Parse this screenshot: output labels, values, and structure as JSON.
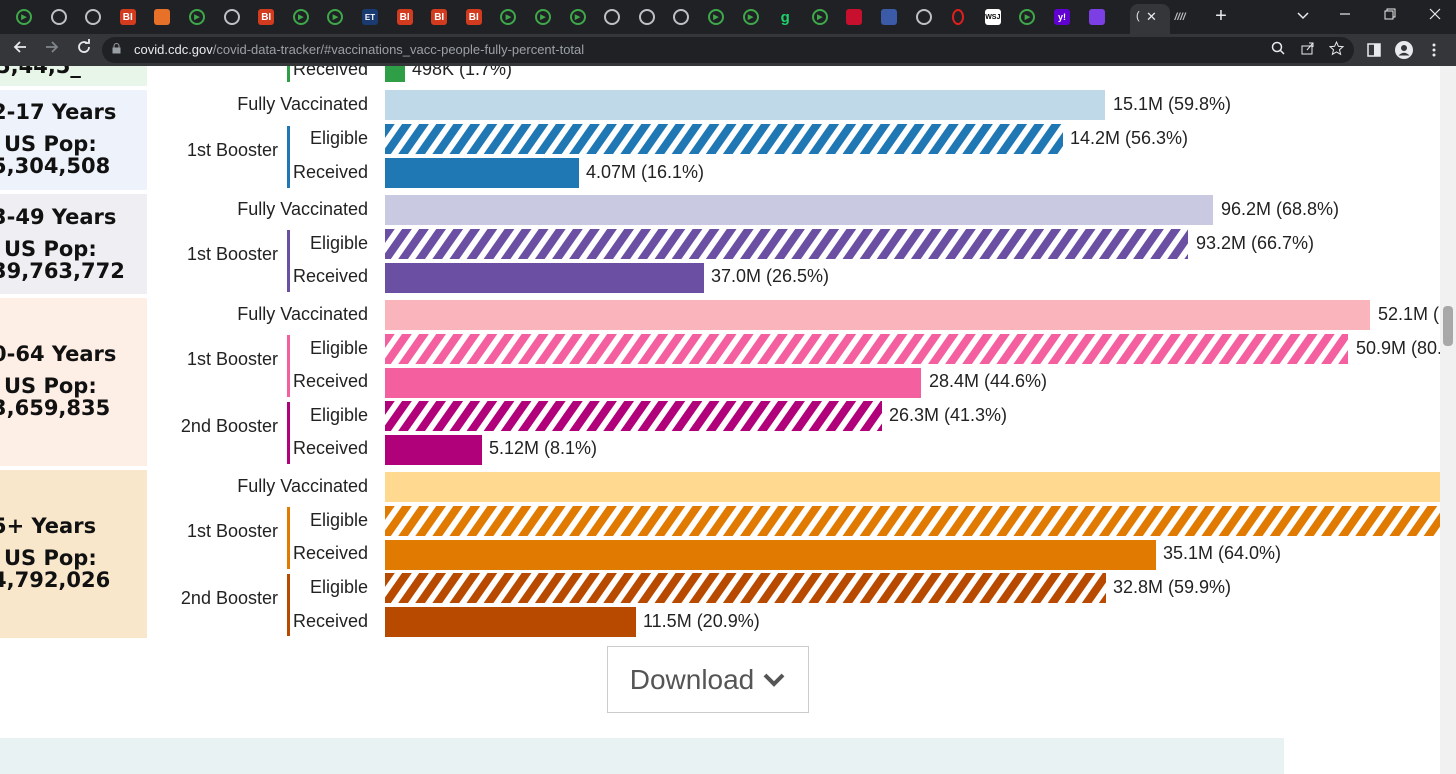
{
  "browser": {
    "url_host": "covid.cdc.gov",
    "url_path": "/covid-data-tracker/#vaccinations_vacc-people-fully-percent-total",
    "tab_favicons": [
      "play-icon",
      "globe-icon",
      "globe-icon",
      "bi-icon",
      "bookmark-icon",
      "play-icon",
      "globe-icon",
      "bi-icon",
      "play-icon",
      "play-icon",
      "et-icon",
      "bi-icon",
      "bi-icon",
      "bi-icon",
      "play-icon",
      "play-icon",
      "play-icon",
      "globe-icon",
      "globe-icon",
      "globe-icon",
      "play-icon",
      "play-icon",
      "g-icon",
      "play-icon",
      "red-icon",
      "blue-icon",
      "globe-icon",
      "opera-icon",
      "wsj-icon",
      "play-icon",
      "yahoo-icon",
      "mail-icon"
    ],
    "active_tab_close": "✕",
    "new_tab": "+",
    "fav_text": {
      "bi": "BI",
      "et": "ET",
      "g": "g",
      "yahoo": "y!",
      "ltr": "////"
    }
  },
  "page": {
    "top_partial": {
      "received_label": "Received",
      "value": "498K (1.7%)",
      "pop_partial": "5,44,5_"
    },
    "groups": [
      {
        "age": "2-17 Years",
        "pop_label": "US Pop:",
        "pop_value": "5,304,508",
        "fully_label": "Fully Vaccinated",
        "fully_value": "15.1M (59.8%)",
        "boosters": [
          {
            "label": "1st Booster",
            "eligible_label": "Eligible",
            "eligible_value": "14.2M (56.3%)",
            "received_label": "Received",
            "received_value": "4.07M (16.1%)"
          }
        ]
      },
      {
        "age": "3-49 Years",
        "pop_label": "US Pop:",
        "pop_value": "39,763,772",
        "fully_label": "Fully Vaccinated",
        "fully_value": "96.2M (68.8%)",
        "boosters": [
          {
            "label": "1st Booster",
            "eligible_label": "Eligible",
            "eligible_value": "93.2M (66.7%)",
            "received_label": "Received",
            "received_value": "37.0M (26.5%)"
          }
        ]
      },
      {
        "age": "0-64 Years",
        "pop_label": "US Pop:",
        "pop_value": "3,659,835",
        "fully_label": "Fully Vaccinated",
        "fully_value": "52.1M (",
        "boosters": [
          {
            "label": "1st Booster",
            "eligible_label": "Eligible",
            "eligible_value": "50.9M (80.",
            "received_label": "Received",
            "received_value": "28.4M (44.6%)"
          },
          {
            "label": "2nd Booster",
            "eligible_label": "Eligible",
            "eligible_value": "26.3M (41.3%)",
            "received_label": "Received",
            "received_value": "5.12M (8.1%)"
          }
        ]
      },
      {
        "age": "5+ Years",
        "pop_label": "US Pop:",
        "pop_value": "4,792,026",
        "fully_label": "Fully Vaccinated",
        "fully_value": "",
        "boosters": [
          {
            "label": "1st Booster",
            "eligible_label": "Eligible",
            "eligible_value": "",
            "received_label": "Received",
            "received_value": "35.1M (64.0%)"
          },
          {
            "label": "2nd Booster",
            "eligible_label": "Eligible",
            "eligible_value": "32.8M (59.9%)",
            "received_label": "Received",
            "received_value": "11.5M (20.9%)"
          }
        ]
      }
    ],
    "download_label": "Download"
  },
  "colors": {
    "green": "#2e9e47",
    "blue_light": "#bfd9e8",
    "blue": "#1f77b4",
    "purple_light": "#cac9e2",
    "purple": "#6a4fa3",
    "pink_light": "#f9b4bc",
    "pink": "#f45f9f",
    "magenta": "#b0007a",
    "orange_light": "#ffd98f",
    "orange": "#e07a00",
    "orange_dark": "#b84a00"
  }
}
